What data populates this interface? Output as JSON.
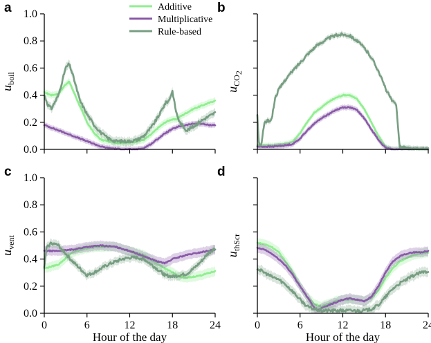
{
  "colors": {
    "additive": "#90ee90",
    "multiplicative": "#8a5aa8",
    "rule_based": "#779e82",
    "axis": "#000000"
  },
  "chart_data": [
    {
      "type": "line",
      "panel": "a",
      "ylabel_main": "u",
      "ylabel_sub": "boil",
      "xlabel": "",
      "xlim": [
        0,
        24
      ],
      "ylim": [
        0,
        1
      ],
      "xticks": [
        0,
        6,
        12,
        18,
        24
      ],
      "yticks": [
        "0.0",
        "0.2",
        "0.4",
        "0.6",
        "0.8",
        "1.0"
      ],
      "show_xticklabels": false,
      "show_yticklabels": true,
      "series": [
        {
          "name": "Additive",
          "key": "additive",
          "band": 0.025,
          "x": [
            0,
            1,
            2,
            3,
            3.5,
            4,
            5,
            6,
            7,
            8,
            9,
            10,
            11,
            12,
            13,
            14,
            15,
            16,
            17,
            17.8,
            18.5,
            19,
            20,
            21,
            22,
            23,
            24
          ],
          "y": [
            0.42,
            0.4,
            0.41,
            0.48,
            0.5,
            0.44,
            0.32,
            0.2,
            0.12,
            0.07,
            0.06,
            0.05,
            0.05,
            0.05,
            0.06,
            0.07,
            0.11,
            0.16,
            0.2,
            0.22,
            0.22,
            0.24,
            0.27,
            0.3,
            0.32,
            0.34,
            0.36
          ]
        },
        {
          "name": "Multiplicative",
          "key": "multiplicative",
          "band": 0.02,
          "x": [
            0,
            1,
            2,
            3,
            4,
            5,
            6,
            7,
            8,
            9,
            10,
            11,
            12,
            13,
            14,
            15,
            16,
            17,
            18,
            19,
            20,
            21,
            22,
            23,
            24
          ],
          "y": [
            0.18,
            0.16,
            0.14,
            0.12,
            0.1,
            0.08,
            0.06,
            0.04,
            0.02,
            0.01,
            0.005,
            0.0,
            0.0,
            0.0,
            0.01,
            0.04,
            0.08,
            0.12,
            0.15,
            0.17,
            0.18,
            0.19,
            0.19,
            0.18,
            0.18
          ]
        },
        {
          "name": "Rule-based",
          "key": "rule_based",
          "band": 0.03,
          "x": [
            0,
            0.5,
            1,
            2,
            3,
            3.5,
            4,
            5,
            6,
            7,
            8,
            9,
            10,
            11,
            12,
            13,
            14,
            15,
            16,
            17,
            17.5,
            18,
            18.5,
            19,
            19.5,
            20,
            21,
            22,
            23,
            24
          ],
          "y": [
            0.4,
            0.33,
            0.3,
            0.4,
            0.6,
            0.63,
            0.55,
            0.36,
            0.26,
            0.18,
            0.12,
            0.08,
            0.06,
            0.06,
            0.06,
            0.07,
            0.1,
            0.16,
            0.24,
            0.34,
            0.36,
            0.43,
            0.28,
            0.2,
            0.17,
            0.14,
            0.17,
            0.21,
            0.24,
            0.27
          ]
        }
      ]
    },
    {
      "type": "line",
      "panel": "b",
      "ylabel_main": "u",
      "ylabel_sub": "CO",
      "ylabel_subsub": "2",
      "xlabel": "",
      "xlim": [
        0,
        24
      ],
      "ylim": [
        0,
        1
      ],
      "xticks": [
        0,
        6,
        12,
        18,
        24
      ],
      "yticks": [
        "0.0",
        "0.2",
        "0.4",
        "0.6",
        "0.8",
        "1.0"
      ],
      "show_xticklabels": false,
      "show_yticklabels": false,
      "series": [
        {
          "name": "Additive",
          "key": "additive",
          "band": 0.02,
          "x": [
            0,
            2,
            4,
            5,
            6,
            7,
            8,
            9,
            10,
            11,
            12,
            13,
            14,
            15,
            16,
            17,
            18,
            19,
            20,
            22,
            24
          ],
          "y": [
            0.03,
            0.03,
            0.04,
            0.06,
            0.12,
            0.2,
            0.27,
            0.31,
            0.35,
            0.38,
            0.4,
            0.4,
            0.37,
            0.3,
            0.2,
            0.1,
            0.02,
            0.0,
            0.0,
            0.0,
            0.0
          ]
        },
        {
          "name": "Multiplicative",
          "key": "multiplicative",
          "band": 0.02,
          "x": [
            0,
            2,
            4,
            5,
            6,
            7,
            8,
            9,
            10,
            11,
            12,
            13,
            14,
            15,
            16,
            17,
            18,
            19,
            20,
            22,
            24
          ],
          "y": [
            0.02,
            0.02,
            0.03,
            0.04,
            0.08,
            0.14,
            0.19,
            0.23,
            0.26,
            0.29,
            0.31,
            0.31,
            0.29,
            0.23,
            0.15,
            0.07,
            0.01,
            0.0,
            0.0,
            0.0,
            0.0
          ]
        },
        {
          "name": "Rule-based",
          "key": "rule_based",
          "band": 0.02,
          "x": [
            0,
            0.2,
            0.5,
            1,
            2,
            2.5,
            3,
            4,
            5,
            6,
            7,
            8,
            9,
            10,
            11,
            12,
            13,
            14,
            15,
            16,
            17,
            18,
            19,
            19.5,
            20,
            22,
            24
          ],
          "y": [
            0.25,
            0.05,
            0.02,
            0.2,
            0.22,
            0.38,
            0.44,
            0.52,
            0.58,
            0.64,
            0.7,
            0.75,
            0.79,
            0.82,
            0.84,
            0.85,
            0.84,
            0.8,
            0.75,
            0.68,
            0.58,
            0.45,
            0.35,
            0.33,
            0.02,
            0.0,
            0.0
          ]
        }
      ]
    },
    {
      "type": "line",
      "panel": "c",
      "ylabel_main": "u",
      "ylabel_sub": "vent",
      "xlabel": "Hour of the day",
      "xlim": [
        0,
        24
      ],
      "ylim": [
        0,
        1
      ],
      "xticks": [
        0,
        6,
        12,
        18,
        24
      ],
      "yticks": [
        "0.0",
        "0.2",
        "0.4",
        "0.6",
        "0.8",
        "1.0"
      ],
      "show_xticklabels": true,
      "show_yticklabels": true,
      "series": [
        {
          "name": "Additive",
          "key": "additive",
          "band": 0.035,
          "x": [
            0,
            2,
            4,
            6,
            8,
            10,
            12,
            14,
            16,
            18,
            19,
            20,
            22,
            24
          ],
          "y": [
            0.33,
            0.36,
            0.45,
            0.48,
            0.49,
            0.49,
            0.46,
            0.43,
            0.36,
            0.3,
            0.27,
            0.26,
            0.28,
            0.31
          ]
        },
        {
          "name": "Multiplicative",
          "key": "multiplicative",
          "band": 0.035,
          "x": [
            0,
            2,
            4,
            6,
            8,
            10,
            12,
            14,
            16,
            17,
            18,
            20,
            22,
            24
          ],
          "y": [
            0.46,
            0.46,
            0.47,
            0.49,
            0.5,
            0.49,
            0.46,
            0.42,
            0.38,
            0.37,
            0.4,
            0.43,
            0.45,
            0.47
          ]
        },
        {
          "name": "Rule-based",
          "key": "rule_based",
          "band": 0.03,
          "x": [
            0,
            0.3,
            1,
            2,
            3,
            4,
            5,
            6,
            7,
            8,
            9,
            10,
            11,
            12,
            13,
            14,
            15,
            16,
            17,
            18,
            19,
            20,
            21,
            22,
            23,
            24
          ],
          "y": [
            0.33,
            0.48,
            0.52,
            0.5,
            0.44,
            0.38,
            0.33,
            0.28,
            0.3,
            0.33,
            0.36,
            0.38,
            0.4,
            0.41,
            0.41,
            0.4,
            0.36,
            0.32,
            0.28,
            0.27,
            0.28,
            0.29,
            0.33,
            0.38,
            0.44,
            0.48
          ]
        }
      ]
    },
    {
      "type": "line",
      "panel": "d",
      "ylabel_main": "u",
      "ylabel_sub": "thScr",
      "xlabel": "Hour of the day",
      "xlim": [
        0,
        24
      ],
      "ylim": [
        0,
        1
      ],
      "xticks": [
        0,
        6,
        12,
        18,
        24
      ],
      "yticks": [
        "0.0",
        "0.2",
        "0.4",
        "0.6",
        "0.8",
        "1.0"
      ],
      "show_xticklabels": true,
      "show_yticklabels": false,
      "series": [
        {
          "name": "Additive",
          "key": "additive",
          "band": 0.035,
          "x": [
            0,
            1,
            2,
            3,
            4,
            5,
            6,
            7,
            8,
            9,
            10,
            11,
            12,
            13,
            14,
            15,
            16,
            17,
            18,
            19,
            20,
            21,
            22,
            23,
            24
          ],
          "y": [
            0.52,
            0.51,
            0.49,
            0.45,
            0.38,
            0.3,
            0.2,
            0.12,
            0.07,
            0.05,
            0.07,
            0.09,
            0.1,
            0.1,
            0.1,
            0.09,
            0.11,
            0.17,
            0.26,
            0.33,
            0.38,
            0.41,
            0.43,
            0.44,
            0.45
          ]
        },
        {
          "name": "Multiplicative",
          "key": "multiplicative",
          "band": 0.035,
          "x": [
            0,
            1,
            2,
            3,
            4,
            5,
            6,
            7,
            8,
            8.5,
            9,
            10,
            11,
            12,
            13,
            14,
            15,
            16,
            17,
            18,
            19,
            20,
            21,
            22,
            23,
            24
          ],
          "y": [
            0.48,
            0.47,
            0.44,
            0.4,
            0.35,
            0.28,
            0.2,
            0.12,
            0.04,
            0.02,
            0.04,
            0.06,
            0.08,
            0.1,
            0.11,
            0.1,
            0.09,
            0.12,
            0.2,
            0.3,
            0.38,
            0.42,
            0.44,
            0.45,
            0.45,
            0.46
          ]
        },
        {
          "name": "Rule-based",
          "key": "rule_based",
          "band": 0.035,
          "x": [
            0,
            1,
            2,
            3,
            4,
            5,
            6,
            7,
            8,
            9,
            10,
            11,
            12,
            13,
            14,
            15,
            16,
            17,
            18,
            19,
            20,
            21,
            22,
            23,
            24
          ],
          "y": [
            0.33,
            0.3,
            0.27,
            0.25,
            0.21,
            0.16,
            0.1,
            0.05,
            0.03,
            0.02,
            0.02,
            0.02,
            0.02,
            0.02,
            0.02,
            0.02,
            0.03,
            0.06,
            0.12,
            0.18,
            0.22,
            0.25,
            0.28,
            0.3,
            0.31
          ]
        }
      ]
    }
  ],
  "legend": {
    "placement": "top-center",
    "entries": [
      {
        "label": "Additive",
        "key": "additive"
      },
      {
        "label": "Multiplicative",
        "key": "multiplicative"
      },
      {
        "label": "Rule-based",
        "key": "rule_based"
      }
    ]
  }
}
